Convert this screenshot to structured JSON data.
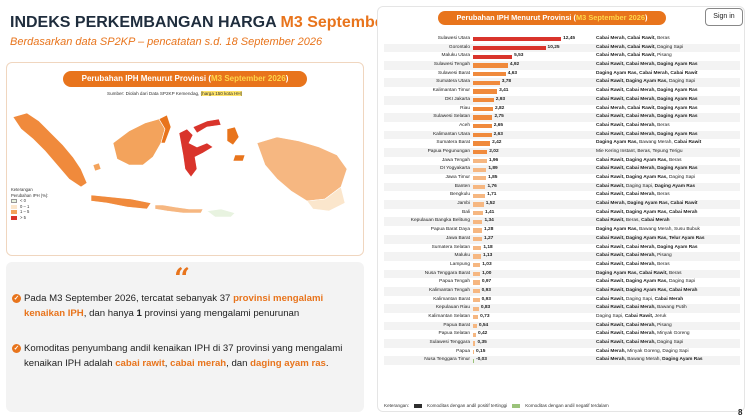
{
  "header": {
    "title_pre": "INDEKS PERKEMBANGAN HARGA ",
    "title_hl": "M3 September 2026",
    "subtitle": "Berdasarkan data SP2KP – pencatatan s.d. 18 September 2026"
  },
  "map_panel": {
    "pill_pre": "Perubahan IPH Menurut Provinsi (",
    "pill_hl": "M3 September 2026",
    "pill_post": ")",
    "source_pre": "Sumber: Diolah dari Data SP2KP Kemendag, ",
    "source_mark": "(harga 150 kota HH)",
    "legend": {
      "title1": "Keterangan",
      "title2": "Perubahan IPH (%):",
      "items": [
        {
          "label": "< 0",
          "color": "#e8f3e0"
        },
        {
          "label": "0 – 1",
          "color": "#fbe6cc"
        },
        {
          "label": "1 – 5",
          "color": "#f3a35c"
        },
        {
          "label": "> 5",
          "color": "#d9342b"
        }
      ]
    }
  },
  "summary": {
    "quote": "“",
    "b1_pre": "Pada M3 September 2026, tercatat sebanyak 37 ",
    "b1_em": "provinsi mengalami kenaikan IPH",
    "b1_mid": ", dan hanya ",
    "b1_bold": "1",
    "b1_post": " provinsi yang mengalami penurunan",
    "b2_pre": "Komoditas penyumbang andil kenaikan IPH di 37 provinsi yang mengalami kenaikan IPH adalah ",
    "b2_em1": "cabai rawit",
    "b2_sep1": ", ",
    "b2_em2": "cabai merah",
    "b2_sep2": ", dan ",
    "b2_em3": "daging ayam ras",
    "b2_post": "."
  },
  "right_panel": {
    "pill_pre": "Perubahan IPH Menurut Provinsi (",
    "pill_hl": "M3 September 2026",
    "pill_post": ")",
    "signin": "Sign in",
    "legend_label": "Keterangan:",
    "legend_pos": "Komoditas dengan andil positif tertinggi",
    "legend_neg": "Komoditas dengan andil negatif terdalam",
    "colors": {
      "high": "#d9342b",
      "mid": "#f08a3c",
      "low": "#f6b781",
      "neg": "#9bc37a"
    }
  },
  "chart_data": {
    "type": "bar",
    "title": "Perubahan IPH Menurut Provinsi (M3 September 2026)",
    "categories": [
      "Sulawesi Utara",
      "Gorontalo",
      "Maluku Utara",
      "Sulawesi Tengah",
      "Sulawesi Barat",
      "Sumatera Utara",
      "Kalimantan Timur",
      "DKI Jakarta",
      "Riau",
      "Sulawesi Selatan",
      "Aceh",
      "Kalimantan Utara",
      "Sumatera Barat",
      "Papua Pegunungan",
      "Jawa Tengah",
      "DI Yogyakarta",
      "Jawa Timur",
      "Banten",
      "Bengkulu",
      "Jambi",
      "Bali",
      "Kepulauan Bangka Belitung",
      "Papua Barat Daya",
      "Jawa Barat",
      "Sumatera Selatan",
      "Maluku",
      "Lampung",
      "Nusa Tenggara Barat",
      "Papua Tengah",
      "Kalimantan Tengah",
      "Kalimantan Barat",
      "Kepulauan Riau",
      "Kalimantan Selatan",
      "Papua Barat",
      "Papua Selatan",
      "Sulawesi Tenggara",
      "Papua",
      "Nusa Tenggara Timur"
    ],
    "values": [
      12.45,
      10.25,
      5.53,
      4.92,
      4.63,
      3.78,
      3.41,
      2.93,
      2.82,
      2.75,
      2.65,
      2.63,
      2.42,
      2.02,
      1.96,
      1.89,
      1.85,
      1.76,
      1.71,
      1.52,
      1.41,
      1.34,
      1.28,
      1.27,
      1.18,
      1.13,
      1.03,
      1.0,
      0.97,
      0.93,
      0.93,
      0.83,
      0.73,
      0.54,
      0.42,
      0.35,
      0.15,
      -0.03
    ],
    "value_labels": [
      "12,45",
      "10,25",
      "5,53",
      "4,92",
      "4,63",
      "3,78",
      "3,41",
      "2,93",
      "2,82",
      "2,75",
      "2,65",
      "2,63",
      "2,42",
      "2,02",
      "1,96",
      "1,89",
      "1,85",
      "1,76",
      "1,71",
      "1,52",
      "1,41",
      "1,34",
      "1,28",
      "1,27",
      "1,18",
      "1,13",
      "1,03",
      "1,00",
      "0,97",
      "0,93",
      "0,93",
      "0,83",
      "0,73",
      "0,54",
      "0,42",
      "0,35",
      "0,15",
      "-0,03"
    ],
    "commodities": [
      [
        [
          "Cabai Merah, ",
          1
        ],
        [
          "Cabai Rawit, ",
          1
        ],
        [
          "Beras",
          0
        ]
      ],
      [
        [
          "Cabai Merah, ",
          1
        ],
        [
          "Cabai Rawit, ",
          1
        ],
        [
          "Daging Sapi",
          0
        ]
      ],
      [
        [
          "Cabai Merah, ",
          1
        ],
        [
          "Cabai Rawit, ",
          1
        ],
        [
          "Pisang",
          0
        ]
      ],
      [
        [
          "Cabai Rawit, ",
          1
        ],
        [
          "Cabai Merah, ",
          1
        ],
        [
          "Daging Ayam Ras",
          1
        ]
      ],
      [
        [
          "Daging Ayam Ras, ",
          1
        ],
        [
          "Cabai Merah, ",
          1
        ],
        [
          "Cabai Rawit",
          1
        ]
      ],
      [
        [
          "Cabai Rawit, ",
          1
        ],
        [
          "Daging Ayam Ras, ",
          1
        ],
        [
          "Daging Sapi",
          0
        ]
      ],
      [
        [
          "Cabai Rawit, ",
          1
        ],
        [
          "Cabai Merah, ",
          1
        ],
        [
          "Daging Ayam Ras",
          1
        ]
      ],
      [
        [
          "Cabai Rawit, ",
          1
        ],
        [
          "Cabai Merah, ",
          1
        ],
        [
          "Daging Ayam Ras",
          1
        ]
      ],
      [
        [
          "Cabai Merah, ",
          1
        ],
        [
          "Cabai Rawit, ",
          1
        ],
        [
          "Daging Ayam Ras",
          1
        ]
      ],
      [
        [
          "Cabai Rawit, ",
          1
        ],
        [
          "Cabai Merah, ",
          1
        ],
        [
          "Daging Ayam Ras",
          1
        ]
      ],
      [
        [
          "Cabai Rawit, ",
          1
        ],
        [
          "Cabai Merah, ",
          1
        ],
        [
          "Beras",
          0
        ]
      ],
      [
        [
          "Cabai Rawit, ",
          1
        ],
        [
          "Cabai Merah, ",
          1
        ],
        [
          "Daging Ayam Ras",
          1
        ]
      ],
      [
        [
          "Daging Ayam Ras, ",
          1
        ],
        [
          "Bawang Merah, ",
          0
        ],
        [
          "Cabai Rawit",
          1
        ]
      ],
      [
        [
          "Mie Kering Instant, ",
          0
        ],
        [
          "Beras, ",
          0
        ],
        [
          "Tepung Terigu",
          0
        ]
      ],
      [
        [
          "Cabai Rawit, ",
          1
        ],
        [
          "Daging Ayam Ras, ",
          1
        ],
        [
          "Beras",
          0
        ]
      ],
      [
        [
          "Cabai Rawit, ",
          1
        ],
        [
          "Cabai Merah, ",
          1
        ],
        [
          "Daging Ayam Ras",
          1
        ]
      ],
      [
        [
          "Cabai Rawit, ",
          1
        ],
        [
          "Daging Ayam Ras, ",
          1
        ],
        [
          "Daging Sapi",
          0
        ]
      ],
      [
        [
          "Cabai Rawit, ",
          1
        ],
        [
          "Daging Sapi, ",
          0
        ],
        [
          "Daging Ayam Ras",
          1
        ]
      ],
      [
        [
          "Cabai Rawit, ",
          1
        ],
        [
          "Cabai Merah, ",
          1
        ],
        [
          "Beras",
          0
        ]
      ],
      [
        [
          "Cabai Merah, ",
          1
        ],
        [
          "Daging Ayam Ras, ",
          1
        ],
        [
          "Cabai Rawit",
          1
        ]
      ],
      [
        [
          "Cabai Rawit, ",
          1
        ],
        [
          "Daging Ayam Ras, ",
          1
        ],
        [
          "Cabai Merah",
          1
        ]
      ],
      [
        [
          "Cabai Rawit, ",
          1
        ],
        [
          "Beras, ",
          0
        ],
        [
          "Cabai Merah",
          1
        ]
      ],
      [
        [
          "Daging Ayam Ras, ",
          1
        ],
        [
          "Bawang Merah, ",
          0
        ],
        [
          "Susu Bubuk",
          0
        ]
      ],
      [
        [
          "Cabai Rawit, ",
          1
        ],
        [
          "Daging Ayam Ras, ",
          1
        ],
        [
          "Telur Ayam Ras",
          1
        ]
      ],
      [
        [
          "Cabai Rawit, ",
          1
        ],
        [
          "Cabai Merah, ",
          1
        ],
        [
          "Daging Ayam Ras",
          1
        ]
      ],
      [
        [
          "Cabai Rawit, ",
          1
        ],
        [
          "Cabai Merah, ",
          1
        ],
        [
          "Pisang",
          0
        ]
      ],
      [
        [
          "Cabai Rawit, ",
          1
        ],
        [
          "Cabai Merah, ",
          1
        ],
        [
          "Beras",
          0
        ]
      ],
      [
        [
          "Daging Ayam Ras, ",
          1
        ],
        [
          "Cabai Rawit, ",
          1
        ],
        [
          "Beras",
          0
        ]
      ],
      [
        [
          "Cabai Rawit, ",
          1
        ],
        [
          "Daging Ayam Ras, ",
          1
        ],
        [
          "Daging Sapi",
          0
        ]
      ],
      [
        [
          "Cabai Rawit, ",
          1
        ],
        [
          "Daging Ayam Ras, ",
          1
        ],
        [
          "Cabai Merah",
          1
        ]
      ],
      [
        [
          "Cabai Rawit, ",
          1
        ],
        [
          "Daging Sapi, ",
          0
        ],
        [
          "Cabai Merah",
          1
        ]
      ],
      [
        [
          "Cabai Rawit, ",
          1
        ],
        [
          "Cabai Merah, ",
          1
        ],
        [
          "Bawang Putih",
          0
        ]
      ],
      [
        [
          "Daging Sapi, ",
          0
        ],
        [
          "Cabai Rawit, ",
          1
        ],
        [
          "Jeruk",
          0
        ]
      ],
      [
        [
          "Cabai Rawit, ",
          1
        ],
        [
          "Cabai Merah, ",
          1
        ],
        [
          "Pisang",
          0
        ]
      ],
      [
        [
          "Cabai Rawit, ",
          1
        ],
        [
          "Cabai Merah, ",
          1
        ],
        [
          "Minyak Goreng",
          0
        ]
      ],
      [
        [
          "Cabai Rawit, ",
          1
        ],
        [
          "Cabai Merah, ",
          1
        ],
        [
          "Daging Sapi",
          0
        ]
      ],
      [
        [
          "Cabai Merah, ",
          1
        ],
        [
          "Minyak Goreng, ",
          0
        ],
        [
          "Daging Sapi",
          0
        ]
      ],
      [
        [
          "Cabai Merah, ",
          1
        ],
        [
          "Bawang Merah, ",
          0
        ],
        [
          "Daging Ayam Ras",
          1
        ]
      ]
    ],
    "xlim": [
      0,
      13
    ],
    "grid": false
  },
  "page_number": "8"
}
